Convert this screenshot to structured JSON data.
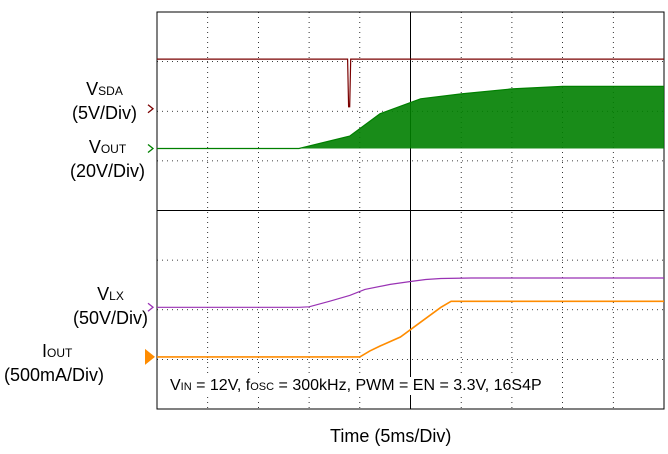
{
  "chart_data": {
    "type": "line",
    "title": "",
    "xlabel": "Time (5ms/Div)",
    "x_unit": "ms",
    "xlim": [
      0,
      50
    ],
    "grid": true,
    "series": [
      {
        "name_main": "V",
        "name_sub": "SDA",
        "scale": "(5V/Div)",
        "color": "#7a0000",
        "points": [
          [
            0,
            5
          ],
          [
            18.8,
            5
          ],
          [
            18.9,
            0.2
          ],
          [
            19.0,
            0.2
          ],
          [
            19.1,
            5
          ],
          [
            50,
            5
          ]
        ]
      },
      {
        "name_main": "V",
        "name_sub": "OUT",
        "scale": "(20V/Div)",
        "color": "#008000",
        "points": [
          [
            0,
            0
          ],
          [
            14,
            0
          ],
          [
            19,
            5
          ],
          [
            22,
            14
          ],
          [
            26,
            20
          ],
          [
            30,
            22
          ],
          [
            35,
            24
          ],
          [
            40,
            25
          ],
          [
            50,
            25
          ]
        ],
        "note": "switching envelope, min 0"
      },
      {
        "name_main": "V",
        "name_sub": "LX",
        "scale": "(50V/Div)",
        "color": "#9932b4",
        "points": [
          [
            0,
            0
          ],
          [
            14,
            0
          ],
          [
            15,
            0.5
          ],
          [
            17,
            6
          ],
          [
            19,
            12
          ],
          [
            20.5,
            18
          ],
          [
            23,
            23
          ],
          [
            25,
            26
          ],
          [
            26.5,
            28
          ],
          [
            28,
            29
          ],
          [
            31,
            29.5
          ],
          [
            35,
            29.5
          ],
          [
            50,
            29.5
          ]
        ]
      },
      {
        "name_main": "I",
        "name_sub": "OUT",
        "scale": "(500mA/Div)",
        "color": "#ff8c00",
        "points": [
          [
            0,
            0
          ],
          [
            20,
            0
          ],
          [
            21,
            60
          ],
          [
            22,
            110
          ],
          [
            24,
            200
          ],
          [
            26,
            350
          ],
          [
            28,
            500
          ],
          [
            29,
            560
          ],
          [
            30,
            560
          ],
          [
            50,
            560
          ]
        ]
      }
    ],
    "annotation": {
      "vin_label": "V",
      "vin_sub": "IN",
      "vin_value": " = 12V, f",
      "fosc_sub": "OSC",
      "rest": " = 300kHz, PWM = EN = 3.3V, 16S4P"
    }
  }
}
